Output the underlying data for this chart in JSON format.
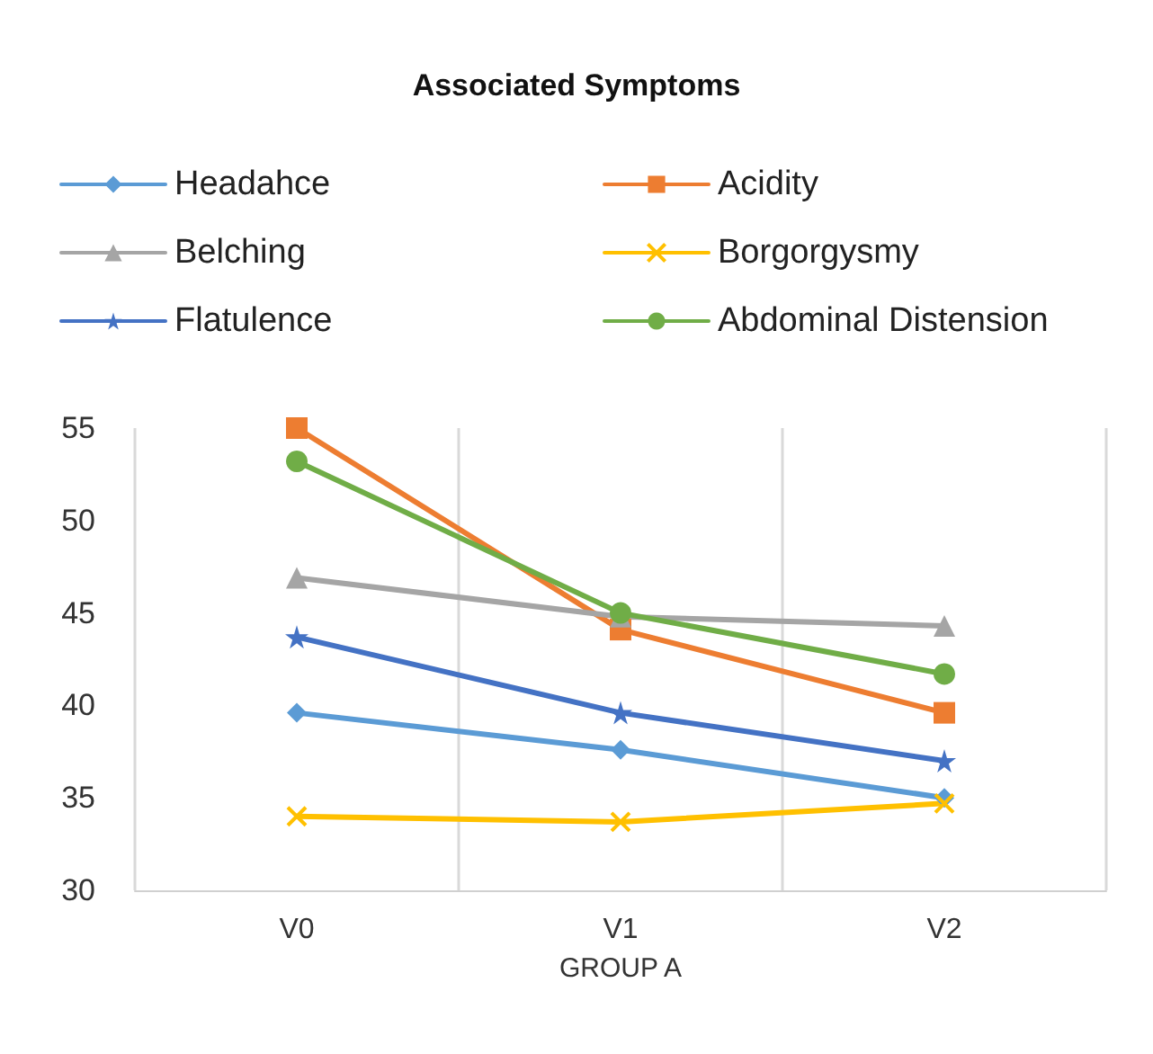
{
  "chart_data": {
    "type": "line",
    "title": "Associated Symptoms",
    "xlabel": "GROUP A",
    "categories": [
      "V0",
      "V1",
      "V2"
    ],
    "series": [
      {
        "name": "Headahce",
        "color": "#5b9bd5",
        "marker": "diamond",
        "values": [
          39.6,
          37.6,
          35.0
        ]
      },
      {
        "name": "Acidity",
        "color": "#ed7d31",
        "marker": "square",
        "values": [
          55.0,
          44.1,
          39.6
        ]
      },
      {
        "name": "Belching",
        "color": "#a5a5a5",
        "marker": "triangle",
        "values": [
          46.9,
          44.8,
          44.3
        ]
      },
      {
        "name": "Borgorgysmy",
        "color": "#ffc000",
        "marker": "cross",
        "values": [
          34.0,
          33.7,
          34.7
        ]
      },
      {
        "name": "Flatulence",
        "color": "#4472c4",
        "marker": "star",
        "values": [
          43.7,
          39.6,
          37.0
        ]
      },
      {
        "name": "Abdominal Distension",
        "color": "#70ad47",
        "marker": "circle",
        "values": [
          53.2,
          45.0,
          41.7
        ]
      }
    ],
    "ylim": [
      30,
      55
    ],
    "yticks": [
      30,
      35,
      40,
      45,
      50,
      55
    ],
    "grid": "x",
    "legend": "top",
    "line_style": "solid"
  }
}
